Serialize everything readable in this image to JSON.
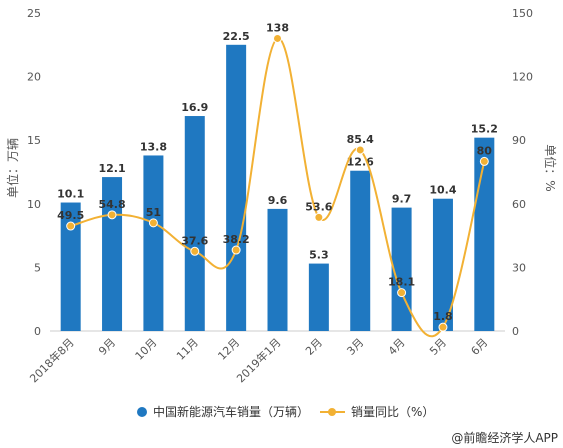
{
  "chart_data": {
    "type": "bar",
    "categories": [
      "2018年8月",
      "9月",
      "10月",
      "11月",
      "12月",
      "2019年1月",
      "2月",
      "3月",
      "4月",
      "5月",
      "6月"
    ],
    "series": [
      {
        "name": "中国新能源汽车销量（万辆）",
        "type": "bar",
        "axis": "left",
        "values": [
          10.1,
          12.1,
          13.8,
          16.9,
          22.5,
          9.6,
          5.3,
          12.6,
          9.7,
          10.4,
          15.2
        ]
      },
      {
        "name": "销量同比（%）",
        "type": "line",
        "axis": "right",
        "values": [
          49.5,
          54.8,
          51,
          37.6,
          38.2,
          138,
          53.6,
          85.4,
          18.1,
          1.8,
          80
        ]
      }
    ],
    "ylabel": "单位：万辆",
    "ylabel_right": "单位：%",
    "ylim": [
      0,
      25
    ],
    "yticks": [
      0,
      5,
      10,
      15,
      20,
      25
    ],
    "ylim_right": [
      0,
      150
    ],
    "yticks_right": [
      0,
      30,
      60,
      90,
      120,
      150
    ],
    "legend_position": "bottom",
    "grid": false,
    "colors": {
      "bar": "#1f78c1",
      "line": "#f2b134"
    }
  },
  "watermark": "@前瞻经济学人APP"
}
